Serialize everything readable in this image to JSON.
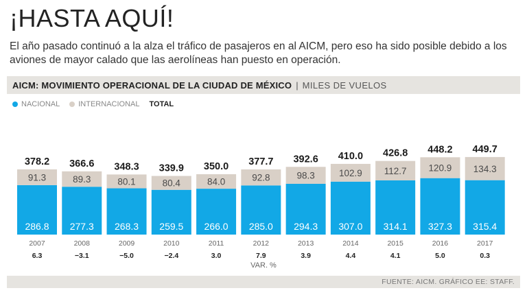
{
  "headline": "¡HASTA AQUÍ!",
  "intro": "El año pasado continuó a la alza el tráfico de pasajeros en al AICM, pero eso ha sido posible debido a los aviones de mayor calado que las aerolíneas han puesto en operación.",
  "title": "AICM: MOVIMIENTO OPERACIONAL DE LA CIUDAD DE MÉXICO",
  "title_separator": "|",
  "unit": "MILES DE VUELOS",
  "legend": {
    "nacional": "NACIONAL",
    "internacional": "INTERNACIONAL",
    "total": "TOTAL"
  },
  "var_label": "VAR. %",
  "source": "FUENTE: AICM.  GRÁFICO EE: STAFF.",
  "colors": {
    "nacional": "#12a8e6",
    "internacional": "#d9d0c7",
    "title_bar": "#e6e4e0"
  },
  "chart_data": {
    "type": "bar",
    "stacked": true,
    "categories": [
      "2007",
      "2008",
      "2009",
      "2010",
      "2011",
      "2012",
      "2013",
      "2014",
      "2015",
      "2016",
      "2017"
    ],
    "series": [
      {
        "name": "NACIONAL",
        "values": [
          286.8,
          277.3,
          268.3,
          259.5,
          266.0,
          285.0,
          294.3,
          307.0,
          314.1,
          327.3,
          315.4
        ]
      },
      {
        "name": "INTERNACIONAL",
        "values": [
          91.3,
          89.3,
          80.1,
          80.4,
          84.0,
          92.8,
          98.3,
          102.9,
          112.7,
          120.9,
          134.3
        ]
      }
    ],
    "totals_label": "TOTAL",
    "totals": [
      "378.2",
      "366.6",
      "348.3",
      "339.9",
      "350.0",
      "377.7",
      "392.6",
      "410.0",
      "426.8",
      "448.2",
      "449.7"
    ],
    "nacional_labels": [
      "286.8",
      "277.3",
      "268.3",
      "259.5",
      "266.0",
      "285.0",
      "294.3",
      "307.0",
      "314.1",
      "327.3",
      "315.4"
    ],
    "internacional_labels": [
      "91.3",
      "89.3",
      "80.1",
      "80.4",
      "84.0",
      "92.8",
      "98.3",
      "102.9",
      "112.7",
      "120.9",
      "134.3"
    ],
    "var_pct": [
      "6.3",
      "−3.1",
      "−5.0",
      "−2.4",
      "3.0",
      "7.9",
      "3.9",
      "4.4",
      "4.1",
      "5.0",
      "0.3"
    ],
    "var_pct_label": "VAR. %",
    "ylabel": "MILES DE VUELOS",
    "grid": false,
    "legend_position": "top-left"
  }
}
